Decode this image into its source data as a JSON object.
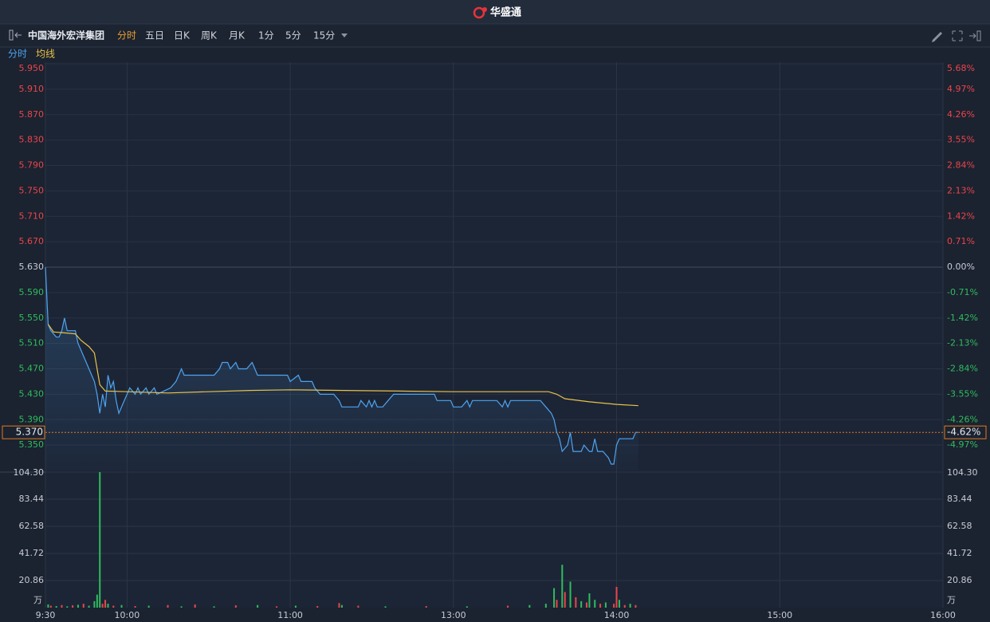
{
  "app": {
    "logo": "华盛通"
  },
  "toolbar": {
    "stock_name": "中国海外宏洋集团",
    "tabs": [
      "分时",
      "五日",
      "日K",
      "周K",
      "月K",
      "1分",
      "5分",
      "15分"
    ],
    "active_color": "#f0a030"
  },
  "chart_data": [
    {
      "type": "line",
      "up_color": "#e8464b",
      "down_color": "#2fbd5e",
      "flat_color": "#c8ccd4",
      "grid": true,
      "xlim": [
        0,
        330
      ],
      "xticks": [
        {
          "value": 0,
          "label": "9:30"
        },
        {
          "value": 30,
          "label": "10:00"
        },
        {
          "value": 90,
          "label": "11:00"
        },
        {
          "value": 150,
          "label": "13:00"
        },
        {
          "value": 210,
          "label": "14:00"
        },
        {
          "value": 270,
          "label": "15:00"
        },
        {
          "value": 330,
          "label": "16:00"
        }
      ],
      "ylim": [
        5.31,
        5.95
      ],
      "yticks": [
        {
          "value": 5.95,
          "label": "5.950"
        },
        {
          "value": 5.91,
          "label": "5.910"
        },
        {
          "value": 5.87,
          "label": "5.870"
        },
        {
          "value": 5.83,
          "label": "5.830"
        },
        {
          "value": 5.79,
          "label": "5.790"
        },
        {
          "value": 5.75,
          "label": "5.750"
        },
        {
          "value": 5.71,
          "label": "5.710"
        },
        {
          "value": 5.67,
          "label": "5.670"
        },
        {
          "value": 5.63,
          "label": "5.630"
        },
        {
          "value": 5.59,
          "label": "5.590"
        },
        {
          "value": 5.55,
          "label": "5.550"
        },
        {
          "value": 5.51,
          "label": "5.510"
        },
        {
          "value": 5.47,
          "label": "5.470"
        },
        {
          "value": 5.43,
          "label": "5.430"
        },
        {
          "value": 5.39,
          "label": "5.390"
        },
        {
          "value": 5.35,
          "label": "5.350"
        }
      ],
      "y2lim": [
        -5.68,
        5.68
      ],
      "y2ticks": [
        {
          "value": 5.68,
          "label": "5.68%"
        },
        {
          "value": 4.97,
          "label": "4.97%"
        },
        {
          "value": 4.26,
          "label": "4.26%"
        },
        {
          "value": 3.55,
          "label": "3.55%"
        },
        {
          "value": 2.84,
          "label": "2.84%"
        },
        {
          "value": 2.13,
          "label": "2.13%"
        },
        {
          "value": 1.42,
          "label": "1.42%"
        },
        {
          "value": 0.71,
          "label": "0.71%"
        },
        {
          "value": 0,
          "label": "0.00%"
        },
        {
          "value": -0.71,
          "label": "-0.71%"
        },
        {
          "value": -1.42,
          "label": "-1.42%"
        },
        {
          "value": -2.13,
          "label": "-2.13%"
        },
        {
          "value": -2.84,
          "label": "-2.84%"
        },
        {
          "value": -3.55,
          "label": "-3.55%"
        },
        {
          "value": -4.26,
          "label": "-4.26%"
        },
        {
          "value": -4.97,
          "label": "-4.97%"
        }
      ],
      "last": {
        "value": 5.37,
        "label": "5.370",
        "change": {
          "value": -4.62,
          "label": "-4.62%"
        },
        "color": "#e07b1e"
      },
      "series": [
        {
          "name": "分时",
          "color": "#4ea4f0",
          "x": [
            0,
            1,
            2,
            4,
            5,
            6,
            7,
            8,
            11,
            12,
            13,
            14,
            15,
            16,
            17,
            18,
            19,
            20,
            21,
            22,
            23,
            24,
            25,
            26,
            27,
            28,
            29,
            30,
            31,
            33,
            34,
            35,
            37,
            38,
            40,
            41,
            46,
            48,
            49,
            50,
            51,
            62,
            64,
            65,
            67,
            68,
            70,
            71,
            74,
            76,
            77,
            78,
            89,
            90,
            93,
            94,
            98,
            99,
            101,
            106,
            108,
            109,
            115,
            116,
            118,
            119,
            120,
            121,
            122,
            124,
            126,
            128,
            143,
            144,
            149,
            150,
            153,
            155,
            156,
            157,
            166,
            168,
            169,
            170,
            171,
            182,
            184,
            186,
            187,
            188,
            189,
            190,
            192,
            193,
            194,
            197,
            198,
            200,
            201,
            202,
            203,
            205,
            207,
            208,
            209,
            210,
            211,
            216,
            217,
            218
          ],
          "values": [
            5.63,
            5.54,
            5.53,
            5.52,
            5.52,
            5.53,
            5.55,
            5.53,
            5.53,
            5.51,
            5.5,
            5.49,
            5.48,
            5.47,
            5.46,
            5.45,
            5.43,
            5.4,
            5.43,
            5.41,
            5.46,
            5.44,
            5.45,
            5.42,
            5.4,
            5.41,
            5.42,
            5.43,
            5.44,
            5.43,
            5.44,
            5.43,
            5.44,
            5.43,
            5.44,
            5.43,
            5.44,
            5.45,
            5.46,
            5.47,
            5.46,
            5.46,
            5.47,
            5.48,
            5.48,
            5.47,
            5.48,
            5.47,
            5.47,
            5.48,
            5.47,
            5.46,
            5.46,
            5.45,
            5.46,
            5.45,
            5.45,
            5.44,
            5.43,
            5.43,
            5.42,
            5.41,
            5.41,
            5.42,
            5.41,
            5.42,
            5.41,
            5.42,
            5.41,
            5.41,
            5.42,
            5.43,
            5.43,
            5.42,
            5.42,
            5.41,
            5.41,
            5.42,
            5.41,
            5.42,
            5.42,
            5.41,
            5.42,
            5.41,
            5.42,
            5.42,
            5.41,
            5.4,
            5.39,
            5.37,
            5.36,
            5.34,
            5.35,
            5.37,
            5.34,
            5.34,
            5.35,
            5.34,
            5.34,
            5.36,
            5.34,
            5.34,
            5.33,
            5.32,
            5.32,
            5.35,
            5.36,
            5.36,
            5.37,
            5.37
          ]
        },
        {
          "name": "均线",
          "color": "#e8c24a",
          "x": [
            1,
            3,
            6,
            11,
            13,
            16,
            18,
            19,
            20,
            22,
            30,
            45,
            60,
            75,
            90,
            110,
            130,
            150,
            170,
            185,
            188,
            191,
            200,
            210,
            218
          ],
          "values": [
            5.54,
            5.528,
            5.527,
            5.525,
            5.515,
            5.505,
            5.495,
            5.47,
            5.445,
            5.435,
            5.434,
            5.432,
            5.434,
            5.436,
            5.437,
            5.436,
            5.435,
            5.434,
            5.434,
            5.434,
            5.43,
            5.423,
            5.418,
            5.414,
            5.412
          ]
        }
      ]
    },
    {
      "type": "bar",
      "unit": "万",
      "xlim": [
        0,
        330
      ],
      "ylim": [
        0,
        104.3
      ],
      "yticks": [
        {
          "value": 104.3,
          "label": "104.30"
        },
        83.44,
        62.58,
        41.72,
        20.86
      ],
      "series": [
        {
          "x": [
            1,
            2,
            4,
            6,
            8,
            10,
            12,
            14,
            16,
            18,
            19,
            20,
            21,
            22,
            23,
            25,
            28,
            33,
            38,
            45,
            50,
            55,
            62,
            70,
            78,
            85,
            92,
            100,
            108,
            109,
            115,
            125,
            140,
            155,
            170,
            178,
            184,
            187,
            188,
            190,
            191,
            193,
            195,
            197,
            199,
            200,
            202,
            204,
            206,
            209,
            210,
            211,
            213,
            215,
            217
          ],
          "values": [
            2.5,
            1.5,
            1.2,
            2,
            1,
            1.8,
            2.2,
            3,
            1.5,
            5,
            10,
            104.3,
            3,
            6,
            3,
            1.5,
            2,
            1.2,
            1.5,
            2,
            1,
            2.5,
            1,
            1.8,
            2,
            1,
            1.5,
            1.2,
            3.5,
            2,
            1.5,
            1,
            1.2,
            1,
            1.5,
            2,
            3,
            15,
            6,
            33,
            12,
            20,
            8,
            5,
            4,
            11,
            6,
            3,
            4,
            3,
            16,
            6,
            2,
            3,
            2
          ],
          "colors": [
            "#2fbd5e",
            "#e8464b",
            "#2fbd5e",
            "#e8464b",
            "#2fbd5e",
            "#e8464b",
            "#2fbd5e",
            "#e8464b",
            "#2fbd5e",
            "#2fbd5e",
            "#2fbd5e",
            "#2fbd5e",
            "#e8464b",
            "#e8464b",
            "#2fbd5e",
            "#e8464b",
            "#2fbd5e",
            "#e8464b",
            "#2fbd5e",
            "#e8464b",
            "#2fbd5e",
            "#e8464b",
            "#2fbd5e",
            "#e8464b",
            "#2fbd5e",
            "#e8464b",
            "#2fbd5e",
            "#e8464b",
            "#e8464b",
            "#2fbd5e",
            "#e8464b",
            "#2fbd5e",
            "#e8464b",
            "#2fbd5e",
            "#e8464b",
            "#2fbd5e",
            "#2fbd5e",
            "#2fbd5e",
            "#e8464b",
            "#2fbd5e",
            "#e8464b",
            "#2fbd5e",
            "#e8464b",
            "#2fbd5e",
            "#e8464b",
            "#2fbd5e",
            "#2fbd5e",
            "#e8464b",
            "#2fbd5e",
            "#e8464b",
            "#e8464b",
            "#2fbd5e",
            "#e8464b",
            "#2fbd5e",
            "#e8464b"
          ]
        }
      ]
    }
  ]
}
